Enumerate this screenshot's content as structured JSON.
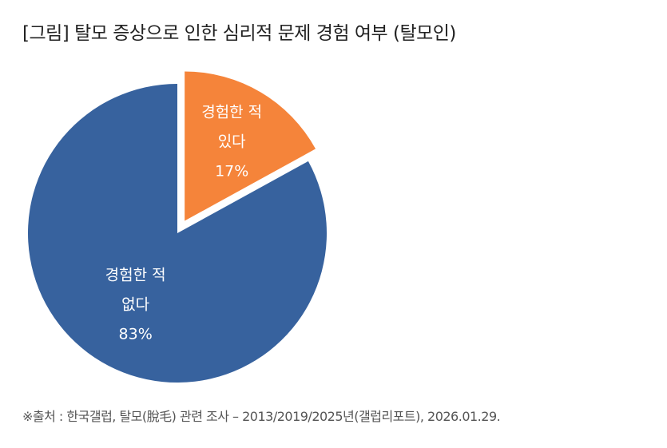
{
  "title": "[그림] 탈모 증상으로 인한 심리적 문제 경험 여부 (탈모인)",
  "source": "※출처 : 한국갤럽, 탈모(脫毛) 관련 조사 – 2013/2019/2025년(갤럽리포트), 2026.01.29.",
  "chart_data": {
    "type": "pie",
    "title": "[그림] 탈모 증상으로 인한 심리적 문제 경험 여부 (탈모인)",
    "slices": [
      {
        "label_lines": [
          "경험한 적",
          "있다"
        ],
        "value": 17,
        "value_label": "17%",
        "color": "#f5843a",
        "exploded": true
      },
      {
        "label_lines": [
          "경험한 적",
          "없다"
        ],
        "value": 83,
        "value_label": "83%",
        "color": "#37629e",
        "exploded": false
      }
    ],
    "start_angle": "12 o'clock",
    "direction": "clockwise",
    "legend": "none"
  }
}
